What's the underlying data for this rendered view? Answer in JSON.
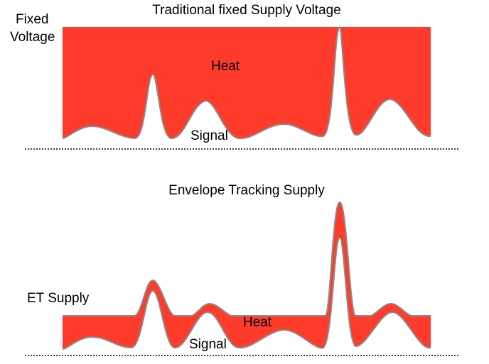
{
  "colors": {
    "heat_fill": "#ff3b2b",
    "signal_stroke": "#8c8c8c",
    "baseline": "#000000",
    "background": "#ffffff"
  },
  "top_panel": {
    "title": "Traditional fixed Supply Voltage",
    "supply_label_line1": "Fixed",
    "supply_label_line2": "Voltage",
    "heat_label": "Heat",
    "signal_label": "Signal"
  },
  "bottom_panel": {
    "title": "Envelope Tracking Supply",
    "supply_label": "ET Supply",
    "heat_label": "Heat",
    "signal_label": "Signal"
  }
}
